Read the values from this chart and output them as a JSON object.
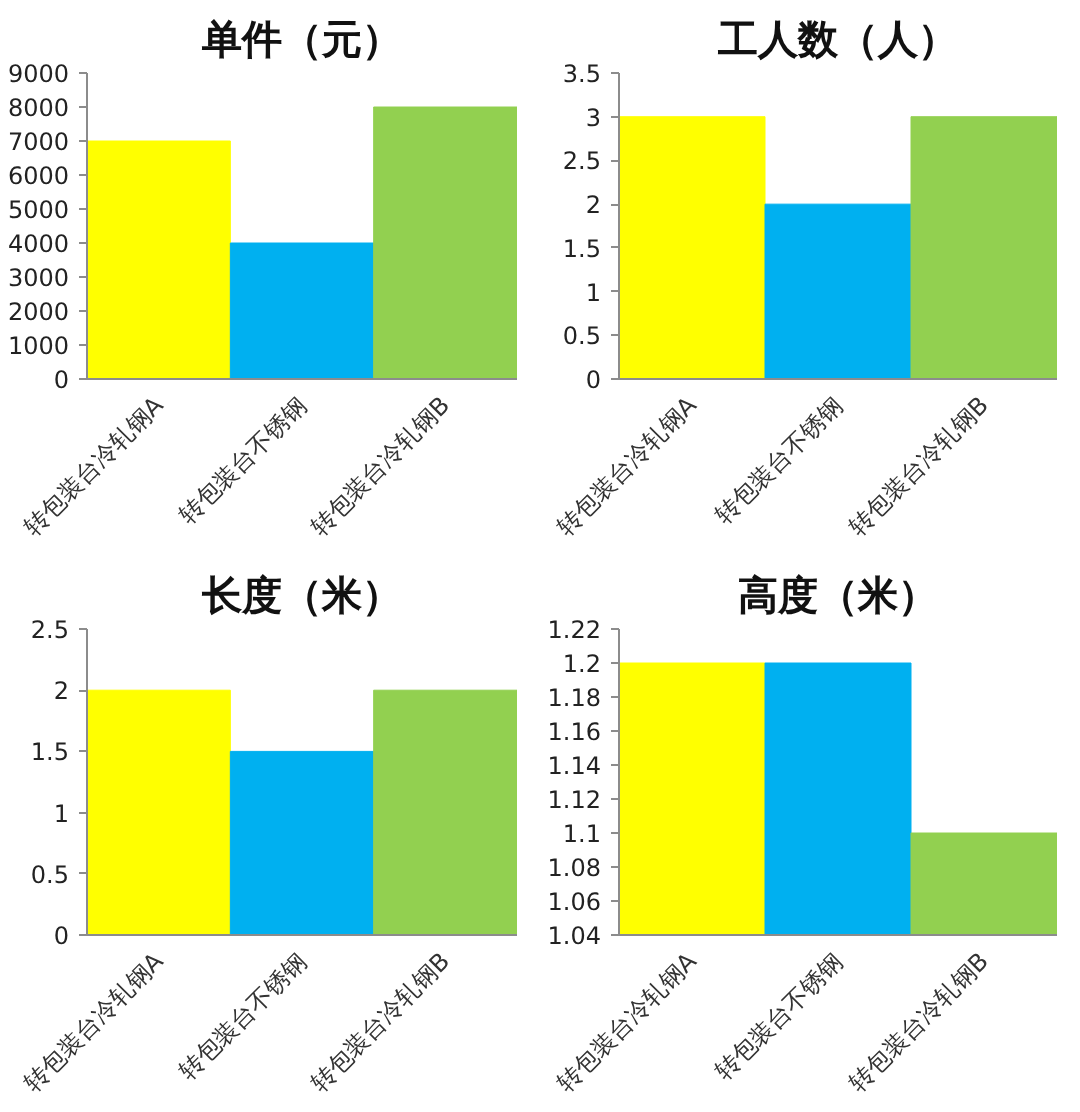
{
  "chart_data": [
    {
      "type": "bar",
      "title": "单件（元）",
      "categories": [
        "转包装台冷轧钢A",
        "转包装台不锈钢",
        "转包装台冷轧钢B"
      ],
      "values": [
        7000,
        4000,
        8000
      ],
      "colors": [
        "#ffff00",
        "#00b0f0",
        "#92d050"
      ],
      "ylim": [
        0,
        9000
      ],
      "yticks": [
        0,
        1000,
        2000,
        3000,
        4000,
        5000,
        6000,
        7000,
        8000,
        9000
      ]
    },
    {
      "type": "bar",
      "title": "工人数（人）",
      "categories": [
        "转包装台冷轧钢A",
        "转包装台不锈钢",
        "转包装台冷轧钢B"
      ],
      "values": [
        3,
        2,
        3
      ],
      "colors": [
        "#ffff00",
        "#00b0f0",
        "#92d050"
      ],
      "ylim": [
        0,
        3.5
      ],
      "yticks": [
        0,
        0.5,
        1,
        1.5,
        2,
        2.5,
        3,
        3.5
      ]
    },
    {
      "type": "bar",
      "title": "长度（米）",
      "categories": [
        "转包装台冷轧钢A",
        "转包装台不锈钢",
        "转包装台冷轧钢B"
      ],
      "values": [
        2,
        1.5,
        2
      ],
      "colors": [
        "#ffff00",
        "#00b0f0",
        "#92d050"
      ],
      "ylim": [
        0,
        2.5
      ],
      "yticks": [
        0,
        0.5,
        1,
        1.5,
        2,
        2.5
      ]
    },
    {
      "type": "bar",
      "title": "高度（米）",
      "categories": [
        "转包装台冷轧钢A",
        "转包装台不锈钢",
        "转包装台冷轧钢B"
      ],
      "values": [
        1.2,
        1.2,
        1.1
      ],
      "colors": [
        "#ffff00",
        "#00b0f0",
        "#92d050"
      ],
      "ylim": [
        1.04,
        1.22
      ],
      "yticks": [
        1.04,
        1.06,
        1.08,
        1.1,
        1.12,
        1.14,
        1.16,
        1.18,
        1.2,
        1.22
      ]
    }
  ]
}
